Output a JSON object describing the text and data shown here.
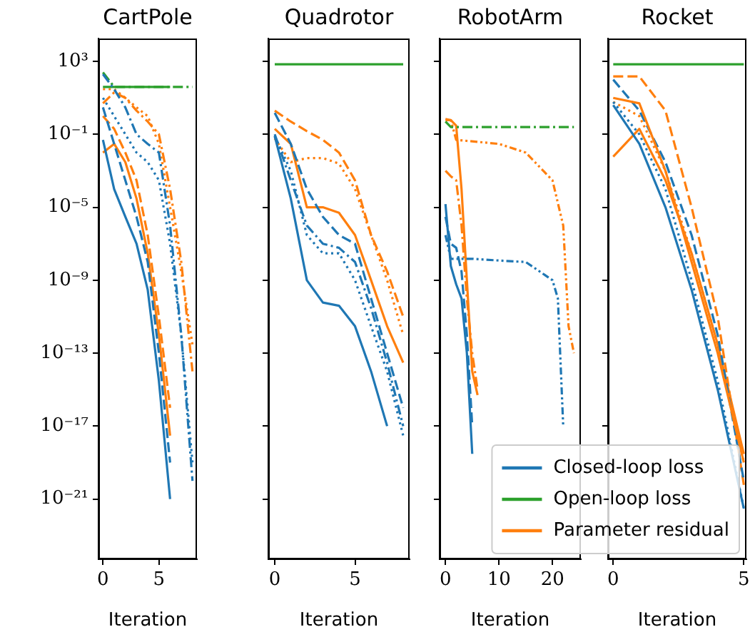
{
  "chart_data": [
    {
      "type": "line",
      "title": "CartPole",
      "xlabel": "Iteration",
      "log": "y",
      "xlim": [
        -0.4,
        8.4
      ],
      "xticks": [
        0,
        5
      ],
      "ylim": [
        5e-25,
        18000
      ],
      "yticks": [
        {
          "value": 1000,
          "label": "10³"
        },
        {
          "value": 0.1,
          "label": "10⁻¹"
        },
        {
          "value": 1e-05,
          "label": "10⁻⁵"
        },
        {
          "value": 1e-09,
          "label": "10⁻⁹"
        },
        {
          "value": 1e-13,
          "label": "10⁻¹³"
        },
        {
          "value": 1e-17,
          "label": "10⁻¹⁷"
        },
        {
          "value": 1e-21,
          "label": "10⁻²¹"
        }
      ],
      "legend": false,
      "marker": "none",
      "series": [
        {
          "color": "#1f77b4",
          "line_style": "solid",
          "x": [
            0,
            1,
            2,
            3,
            4,
            5,
            6
          ],
          "values": [
            0.05,
            0.0001,
            3e-06,
            1e-07,
            3e-10,
            3e-15,
            1e-21
          ]
        },
        {
          "color": "#1f77b4",
          "line_style": "dashed",
          "x": [
            0,
            1,
            2,
            3,
            4,
            5,
            6
          ],
          "values": [
            3,
            0.03,
            0.0003,
            3e-06,
            1e-08,
            1e-13,
            1e-19
          ]
        },
        {
          "color": "#1f77b4",
          "line_style": "dotted",
          "x": [
            0,
            1,
            2,
            3,
            4,
            5,
            6,
            7,
            8
          ],
          "values": [
            10,
            1,
            0.1,
            0.01,
            0.003,
            0.0003,
            1e-07,
            1e-12,
            1e-19
          ]
        },
        {
          "color": "#1f77b4",
          "line_style": "dashdot",
          "x": [
            0,
            1,
            2,
            3,
            4,
            5,
            6,
            7,
            8
          ],
          "values": [
            200,
            30,
            3,
            0.1,
            0.03,
            0.01,
            1e-06,
            1e-12,
            1e-20
          ]
        },
        {
          "color": "#2ca02c",
          "line_style": "solid",
          "x": [
            0,
            1,
            2,
            3,
            4,
            5,
            6
          ],
          "values": [
            40,
            40,
            40,
            40,
            40,
            40,
            40
          ]
        },
        {
          "color": "#2ca02c",
          "line_style": "dashdot",
          "x": [
            0,
            1,
            2,
            3,
            4,
            5,
            6,
            7,
            8
          ],
          "values": [
            250,
            40,
            40,
            40,
            40,
            40,
            40,
            40,
            40
          ]
        },
        {
          "color": "#ff7f0e",
          "line_style": "solid",
          "x": [
            0,
            1,
            2,
            3,
            4,
            5,
            6
          ],
          "values": [
            0.01,
            0.03,
            0.003,
            3e-05,
            3e-08,
            1e-12,
            3e-18
          ]
        },
        {
          "color": "#ff7f0e",
          "line_style": "dashed",
          "x": [
            0,
            1,
            2,
            3,
            4,
            5,
            6
          ],
          "values": [
            1,
            0.2,
            0.01,
            0.0003,
            3e-07,
            1e-11,
            1e-16
          ]
        },
        {
          "color": "#ff7f0e",
          "line_style": "dotted",
          "x": [
            0,
            1,
            2,
            3,
            4,
            5,
            6,
            7,
            8
          ],
          "values": [
            30,
            30,
            10,
            3,
            1,
            0.03,
            1e-05,
            3e-09,
            3e-13
          ]
        },
        {
          "color": "#ff7f0e",
          "line_style": "dashdot",
          "x": [
            0,
            1,
            2,
            3,
            4,
            5,
            6,
            7,
            8
          ],
          "values": [
            5,
            20,
            10,
            2,
            0.5,
            0.1,
            0.0001,
            1e-08,
            1e-14
          ]
        }
      ]
    },
    {
      "type": "line",
      "title": "Quadrotor",
      "xlabel": "Iteration",
      "log": "y",
      "xlim": [
        -0.4,
        8.4
      ],
      "xticks": [
        0,
        5
      ],
      "ylim": [
        5e-25,
        18000
      ],
      "yticks": [
        {
          "value": 1000,
          "label": null
        },
        {
          "value": 0.1,
          "label": null
        },
        {
          "value": 1e-05,
          "label": null
        },
        {
          "value": 1e-09,
          "label": null
        },
        {
          "value": 1e-13,
          "label": null
        },
        {
          "value": 1e-17,
          "label": null
        },
        {
          "value": 1e-21,
          "label": null
        }
      ],
      "tick_labels": "x",
      "legend": false,
      "marker": "none",
      "series": [
        {
          "color": "#2ca02c",
          "line_style": "solid",
          "x": [
            0,
            1,
            2,
            3,
            4,
            5,
            6,
            7,
            8
          ],
          "values": [
            700,
            700,
            700,
            700,
            700,
            700,
            700,
            700,
            700
          ]
        },
        {
          "color": "#1f77b4",
          "line_style": "solid",
          "x": [
            0,
            1,
            2,
            3,
            4,
            5,
            6,
            7
          ],
          "values": [
            0.08,
            3e-05,
            1e-09,
            6e-11,
            4e-11,
            3e-12,
            1e-14,
            1e-17
          ]
        },
        {
          "color": "#1f77b4",
          "line_style": "dotted",
          "x": [
            0,
            1,
            2,
            3,
            4,
            5,
            6,
            7,
            8
          ],
          "values": [
            0.08,
            0.001,
            3e-07,
            3e-08,
            3e-08,
            1e-09,
            3e-12,
            1e-14,
            3e-18
          ]
        },
        {
          "color": "#1f77b4",
          "line_style": "dashdot",
          "x": [
            0,
            1,
            2,
            3,
            4,
            5,
            6,
            7,
            8
          ],
          "values": [
            0.1,
            0.0003,
            1e-06,
            1e-07,
            6e-08,
            1e-08,
            3e-11,
            3e-14,
            1e-17
          ]
        },
        {
          "color": "#1f77b4",
          "line_style": "dashed",
          "x": [
            0,
            1,
            2,
            3,
            4,
            5,
            6,
            7,
            8
          ],
          "values": [
            1.5,
            0.03,
            0.0001,
            3e-06,
            3e-07,
            1e-07,
            1e-10,
            1e-13,
            1e-16
          ]
        },
        {
          "color": "#ff7f0e",
          "line_style": "solid",
          "x": [
            0,
            1,
            2,
            3,
            4,
            5,
            6,
            7,
            8
          ],
          "values": [
            0.2,
            0.03,
            1e-05,
            1e-05,
            5e-06,
            3e-07,
            1e-09,
            3e-12,
            3e-14
          ]
        },
        {
          "color": "#ff7f0e",
          "line_style": "dotted",
          "x": [
            0,
            1,
            2,
            3,
            4,
            5,
            6,
            7,
            8
          ],
          "values": [
            0.06,
            0.003,
            0.005,
            0.005,
            0.0025,
            0.0001,
            3e-07,
            1e-09,
            1e-12
          ]
        },
        {
          "color": "#ff7f0e",
          "line_style": "dashed",
          "x": [
            0,
            1,
            2,
            3,
            4,
            5,
            6,
            7,
            8
          ],
          "values": [
            2,
            0.5,
            0.15,
            0.05,
            0.01,
            0.0003,
            3e-07,
            3e-09,
            1e-11
          ]
        }
      ]
    },
    {
      "type": "line",
      "title": "RobotArm",
      "xlabel": "Iteration",
      "log": "y",
      "xlim": [
        -1.1,
        25.3
      ],
      "xticks": [
        0,
        10,
        20
      ],
      "ylim": [
        5e-25,
        18000
      ],
      "yticks": [
        {
          "value": 1000,
          "label": null
        },
        {
          "value": 0.1,
          "label": null
        },
        {
          "value": 1e-05,
          "label": null
        },
        {
          "value": 1e-09,
          "label": null
        },
        {
          "value": 1e-13,
          "label": null
        },
        {
          "value": 1e-17,
          "label": null
        },
        {
          "value": 1e-21,
          "label": null
        }
      ],
      "tick_labels": "x",
      "legend": false,
      "marker": "none",
      "series": [
        {
          "color": "#2ca02c",
          "line_style": "dashdot",
          "x": [
            0,
            1,
            2,
            5,
            10,
            15,
            20,
            24
          ],
          "values": [
            0.5,
            0.25,
            0.25,
            0.25,
            0.25,
            0.25,
            0.25,
            0.25
          ]
        },
        {
          "color": "#1f77b4",
          "line_style": "solid",
          "x": [
            0,
            1,
            2,
            3,
            4,
            5
          ],
          "values": [
            1.5e-05,
            6e-09,
            6e-10,
            1e-10,
            1e-13,
            3e-19
          ]
        },
        {
          "color": "#1f77b4",
          "line_style": "dashed",
          "x": [
            0,
            1,
            2,
            3,
            4,
            5
          ],
          "values": [
            3e-06,
            1e-07,
            6e-08,
            3e-09,
            1e-12,
            1e-17
          ]
        },
        {
          "color": "#1f77b4",
          "line_style": "dashdotdot",
          "x": [
            0,
            1,
            5,
            10,
            15,
            20,
            21,
            22
          ],
          "values": [
            3e-07,
            1.5e-08,
            1.5e-08,
            1.2e-08,
            1e-08,
            1e-09,
            1e-10,
            1e-17
          ]
        },
        {
          "color": "#ff7f0e",
          "line_style": "solid",
          "x": [
            0,
            1,
            2,
            3,
            4,
            5,
            6
          ],
          "values": [
            0.7,
            0.6,
            0.3,
            0.0001,
            1e-09,
            1e-14,
            5e-16
          ]
        },
        {
          "color": "#ff7f0e",
          "line_style": "dashdot",
          "x": [
            0,
            1,
            2,
            3,
            4,
            5,
            6
          ],
          "values": [
            0.001,
            0.0005,
            0.0003,
            1e-06,
            1e-10,
            1e-13,
            1e-15
          ]
        },
        {
          "color": "#ff7f0e",
          "line_style": "dashdotdot",
          "x": [
            0,
            1,
            2,
            10,
            15,
            20,
            22,
            23,
            24
          ],
          "values": [
            0.6,
            0.6,
            0.05,
            0.03,
            0.01,
            0.0003,
            1e-06,
            3e-12,
            1e-13
          ]
        }
      ]
    },
    {
      "type": "line",
      "title": "Rocket",
      "xlabel": "Iteration",
      "log": "y",
      "xlim": [
        -0.2,
        5.1
      ],
      "xticks": [
        0,
        5
      ],
      "ylim": [
        5e-25,
        18000
      ],
      "yticks": [
        {
          "value": 1000,
          "label": null
        },
        {
          "value": 0.1,
          "label": null
        },
        {
          "value": 1e-05,
          "label": null
        },
        {
          "value": 1e-09,
          "label": null
        },
        {
          "value": 1e-13,
          "label": null
        },
        {
          "value": 1e-17,
          "label": null
        },
        {
          "value": 1e-21,
          "label": null
        }
      ],
      "tick_labels": "x",
      "legend": "bottom",
      "marker": "none",
      "series": [
        {
          "name": "Closed-loop loss",
          "color": "#1f77b4",
          "line_style": "solid",
          "x": [
            0,
            1,
            2,
            3,
            4,
            5
          ],
          "values": [
            4,
            0.03,
            1e-05,
            3e-10,
            1e-15,
            3e-22
          ]
        },
        {
          "name": "Open-loop loss",
          "color": "#2ca02c",
          "line_style": "solid",
          "x": [
            0,
            1,
            2,
            3,
            4,
            5
          ],
          "values": [
            700,
            700,
            700,
            700,
            700,
            700
          ]
        },
        {
          "name": "Parameter residual",
          "color": "#ff7f0e",
          "line_style": "solid",
          "x": [
            0,
            1,
            2,
            3,
            4,
            5
          ],
          "values": [
            10,
            5,
            0.001,
            1e-08,
            1e-13,
            1e-19
          ]
        },
        {
          "color": "#1f77b4",
          "line_style": "dotted",
          "x": [
            0,
            1,
            2,
            3,
            4,
            5
          ],
          "values": [
            6,
            0.1,
            0.0001,
            1e-09,
            3e-15,
            3e-22
          ]
        },
        {
          "color": "#1f77b4",
          "line_style": "dashed",
          "x": [
            0,
            1,
            2,
            3,
            4,
            5
          ],
          "values": [
            100,
            2,
            0.003,
            3e-07,
            1e-12,
            1e-20
          ]
        },
        {
          "color": "#ff7f0e",
          "line_style": "dashed",
          "x": [
            0,
            1,
            2,
            3,
            4,
            5
          ],
          "values": [
            150,
            150,
            2,
            1e-05,
            1e-11,
            6e-21
          ]
        },
        {
          "color": "#ff7f0e",
          "line_style": "solid",
          "x": [
            0,
            1,
            2,
            3,
            4,
            5
          ],
          "values": [
            0.006,
            0.2,
            0.0003,
            3e-08,
            3e-13,
            3e-19
          ]
        },
        {
          "color": "#ff7f0e",
          "line_style": "dotted",
          "x": [
            0,
            1,
            2,
            3,
            4,
            5
          ],
          "values": [
            6,
            1,
            0.001,
            3e-08,
            3e-13,
            1e-19
          ]
        }
      ]
    }
  ]
}
